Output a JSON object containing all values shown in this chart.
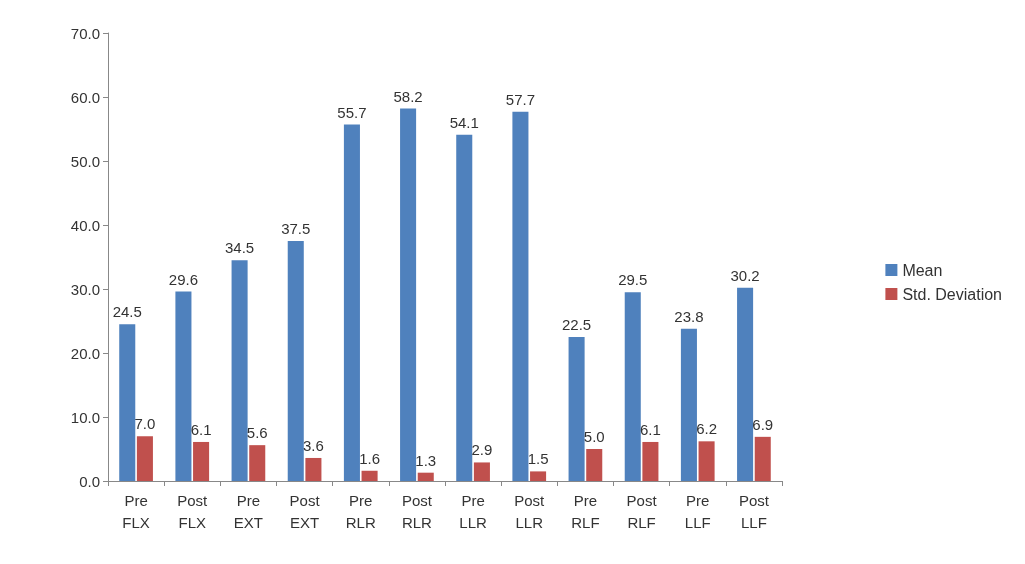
{
  "chart_data": {
    "type": "bar",
    "categories": [
      "Pre FLX",
      "Post FLX",
      "Pre EXT",
      "Post EXT",
      "Pre RLR",
      "Post RLR",
      "Pre LLR",
      "Post LLR",
      "Pre RLF",
      "Post RLF",
      "Pre LLF",
      "Post LLF"
    ],
    "series": [
      {
        "name": "Mean",
        "color": "#4f81bd",
        "values": [
          24.5,
          29.6,
          34.5,
          37.5,
          55.7,
          58.2,
          54.1,
          57.7,
          22.5,
          29.5,
          23.8,
          30.2
        ],
        "value_labels": [
          "24.5",
          "29.6",
          "34.5",
          "37.5",
          "55.7",
          "58.2",
          "54.1",
          "57.7",
          "22.5",
          "29.5",
          "23.8",
          "30.2"
        ]
      },
      {
        "name": "Std. Deviation",
        "color": "#c0504d",
        "values": [
          7.0,
          6.1,
          5.6,
          3.6,
          1.6,
          1.3,
          2.9,
          1.5,
          5.0,
          6.1,
          6.2,
          6.9
        ],
        "value_labels": [
          "7.0",
          "6.1",
          "5.6",
          "3.6",
          "1.6",
          "1.3",
          "2.9",
          "1.5",
          "5.0",
          "6.1",
          "6.2",
          "6.9"
        ]
      }
    ],
    "ylim": [
      0,
      70
    ],
    "yticks": [
      {
        "value": 0,
        "label": "0.0"
      },
      {
        "value": 10,
        "label": "10.0"
      },
      {
        "value": 20,
        "label": "20.0"
      },
      {
        "value": 30,
        "label": "30.0"
      },
      {
        "value": 40,
        "label": "40.0"
      },
      {
        "value": 50,
        "label": "50.0"
      },
      {
        "value": 60,
        "label": "60.0"
      },
      {
        "value": 70,
        "label": "70.0"
      }
    ],
    "grid": false,
    "legend": "right"
  }
}
